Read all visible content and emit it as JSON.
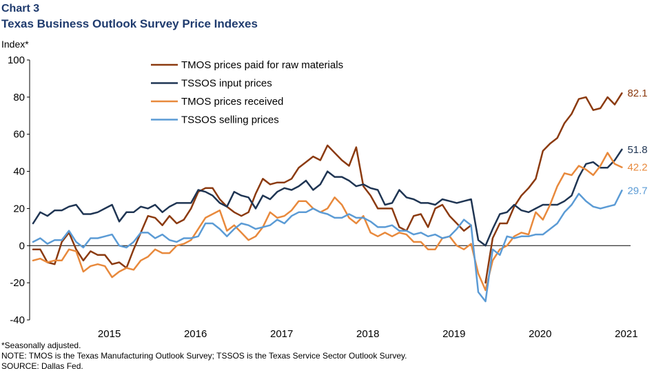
{
  "header": {
    "chart_number": "Chart 3",
    "title": "Texas Business Outlook Survey Price Indexes"
  },
  "chart_data": {
    "type": "line",
    "title": "Texas Business Outlook Survey Price Indexes",
    "ylabel": "Index*",
    "xlabel": "",
    "ylim": [
      -40,
      100
    ],
    "yticks": [
      -40,
      -20,
      0,
      20,
      40,
      60,
      80,
      100
    ],
    "x_start": "2014-08",
    "year_labels": [
      "2015",
      "2016",
      "2017",
      "2018",
      "2019",
      "2020",
      "2021"
    ],
    "legend_position": "top-left",
    "series": [
      {
        "name": "TMOS prices paid for raw materials",
        "color": "#8b3a0f",
        "end_label": "82.1",
        "values": [
          -2,
          -2,
          -9,
          -10,
          2,
          7,
          -2,
          -8,
          -3,
          -5,
          -5,
          -10,
          -9,
          -12,
          -2,
          7,
          16,
          15,
          11,
          16,
          12,
          14,
          20,
          29,
          31,
          31,
          25,
          21,
          18,
          16,
          18,
          28,
          36,
          33,
          34,
          34,
          36,
          42,
          45,
          48,
          46,
          54,
          50,
          46,
          43,
          53,
          32,
          27,
          20,
          20,
          20,
          10,
          8,
          16,
          17,
          10,
          20,
          22,
          16,
          12,
          8,
          11,
          null,
          -20,
          4,
          12,
          12,
          21,
          27,
          31,
          36,
          51,
          55,
          58,
          66,
          71,
          79,
          80,
          73,
          74,
          80,
          76,
          82.1
        ]
      },
      {
        "name": "TSSOS input prices",
        "color": "#1f3553",
        "end_label": "51.8",
        "values": [
          12,
          18,
          16,
          19,
          19,
          21,
          22,
          17,
          17,
          18,
          20,
          22,
          13,
          18,
          18,
          21,
          20,
          22,
          18,
          21,
          23,
          23,
          23,
          30,
          29,
          27,
          23,
          21,
          29,
          27,
          26,
          20,
          27,
          25,
          29,
          31,
          30,
          32,
          35,
          30,
          33,
          40,
          37,
          37,
          35,
          32,
          33,
          31,
          30,
          22,
          23,
          30,
          26,
          25,
          23,
          23,
          22,
          25,
          24,
          23,
          24,
          25,
          3,
          0,
          9,
          17,
          18,
          22,
          19,
          18,
          20,
          22,
          22,
          22,
          24,
          27,
          37,
          44,
          45,
          42,
          42,
          46,
          51.8
        ]
      },
      {
        "name": "TMOS prices received",
        "color": "#e8893c",
        "end_label": "42.2",
        "values": [
          -8,
          -7,
          -9,
          -8,
          -8,
          -2,
          -3,
          -14,
          -11,
          -10,
          -11,
          -17,
          -14,
          -12,
          -13,
          -8,
          -6,
          -2,
          -4,
          -4,
          0,
          1,
          3,
          9,
          15,
          17,
          19,
          8,
          11,
          7,
          3,
          5,
          10,
          18,
          15,
          16,
          19,
          24,
          24,
          20,
          18,
          20,
          26,
          22,
          15,
          12,
          16,
          7,
          5,
          7,
          5,
          7,
          6,
          2,
          2,
          -2,
          -2,
          4,
          5,
          0,
          -2,
          1,
          -15,
          -24,
          -8,
          -2,
          0,
          5,
          7,
          6,
          18,
          14,
          22,
          32,
          39,
          38,
          43,
          41,
          38,
          43,
          50,
          44,
          42.2
        ]
      },
      {
        "name": "TSSOS selling prices",
        "color": "#5b9bd5",
        "end_label": "29.7",
        "values": [
          2,
          4,
          1,
          3,
          3,
          8,
          2,
          -1,
          4,
          4,
          5,
          6,
          0,
          -1,
          2,
          7,
          7,
          4,
          6,
          3,
          2,
          4,
          4,
          5,
          12,
          12,
          9,
          5,
          9,
          12,
          11,
          9,
          10,
          11,
          14,
          12,
          16,
          18,
          18,
          20,
          18,
          17,
          15,
          15,
          17,
          15,
          15,
          13,
          10,
          10,
          11,
          8,
          8,
          6,
          7,
          5,
          6,
          4,
          5,
          9,
          14,
          11,
          -25,
          -30,
          -2,
          -5,
          5,
          4,
          5,
          5,
          6,
          6,
          9,
          12,
          18,
          22,
          28,
          24,
          21,
          20,
          21,
          22,
          29.7
        ]
      }
    ]
  },
  "footer": {
    "note1": "*Seasonally adjusted.",
    "note2": "NOTE: TMOS is the Texas Manufacturing Outlook Survey; TSSOS is the Texas Service Sector Outlook Survey.",
    "source": "SOURCE: Dallas Fed."
  }
}
